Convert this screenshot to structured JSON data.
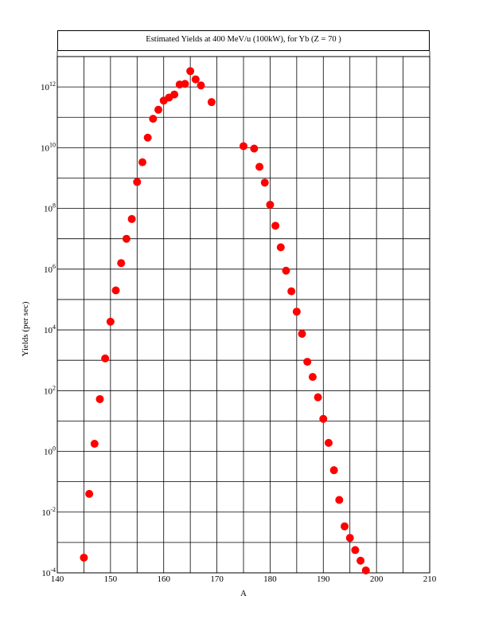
{
  "chart_data": {
    "type": "scatter",
    "title": "Estimated Yields at 400 MeV/u (100kW), for Yb (Z = 70 )",
    "xlabel": "A",
    "ylabel": "Yields (per sec)",
    "xlim": [
      140,
      210
    ],
    "ylim_log10": [
      -4,
      13
    ],
    "yscale": "log",
    "grid": true,
    "marker_color": "#ff0000",
    "x_ticks": [
      140,
      150,
      160,
      170,
      180,
      190,
      200,
      210
    ],
    "x_tick_labels": [
      "140",
      "150",
      "160",
      "170",
      "180",
      "190",
      "200",
      "210"
    ],
    "y_ticks_log10": [
      -4,
      -2,
      0,
      2,
      4,
      6,
      8,
      10,
      12
    ],
    "y_tick_base": "10",
    "y_tick_exponents": [
      "-4",
      "-2",
      "0",
      "2",
      "4",
      "6",
      "8",
      "10",
      "12"
    ],
    "x": [
      145,
      146,
      147,
      148,
      149,
      150,
      151,
      152,
      153,
      154,
      155,
      156,
      157,
      158,
      159,
      160,
      161,
      162,
      163,
      164,
      165,
      166,
      167,
      169,
      175,
      177,
      178,
      179,
      180,
      181,
      182,
      183,
      184,
      185,
      186,
      187,
      188,
      189,
      190,
      191,
      192,
      193,
      194,
      195,
      196,
      197,
      198
    ],
    "log10_y": [
      -3.5,
      -1.4,
      0.25,
      1.72,
      3.06,
      4.27,
      5.3,
      6.2,
      7.0,
      7.65,
      8.87,
      9.52,
      10.33,
      10.95,
      11.25,
      11.55,
      11.65,
      11.75,
      12.08,
      12.1,
      12.52,
      12.25,
      12.05,
      11.5,
      10.05,
      9.97,
      9.37,
      8.85,
      8.12,
      7.43,
      6.72,
      5.95,
      5.27,
      4.6,
      3.87,
      2.95,
      2.45,
      1.78,
      1.07,
      0.28,
      -0.62,
      -1.6,
      -2.47,
      -2.85,
      -3.25,
      -3.6,
      -3.92
    ]
  }
}
